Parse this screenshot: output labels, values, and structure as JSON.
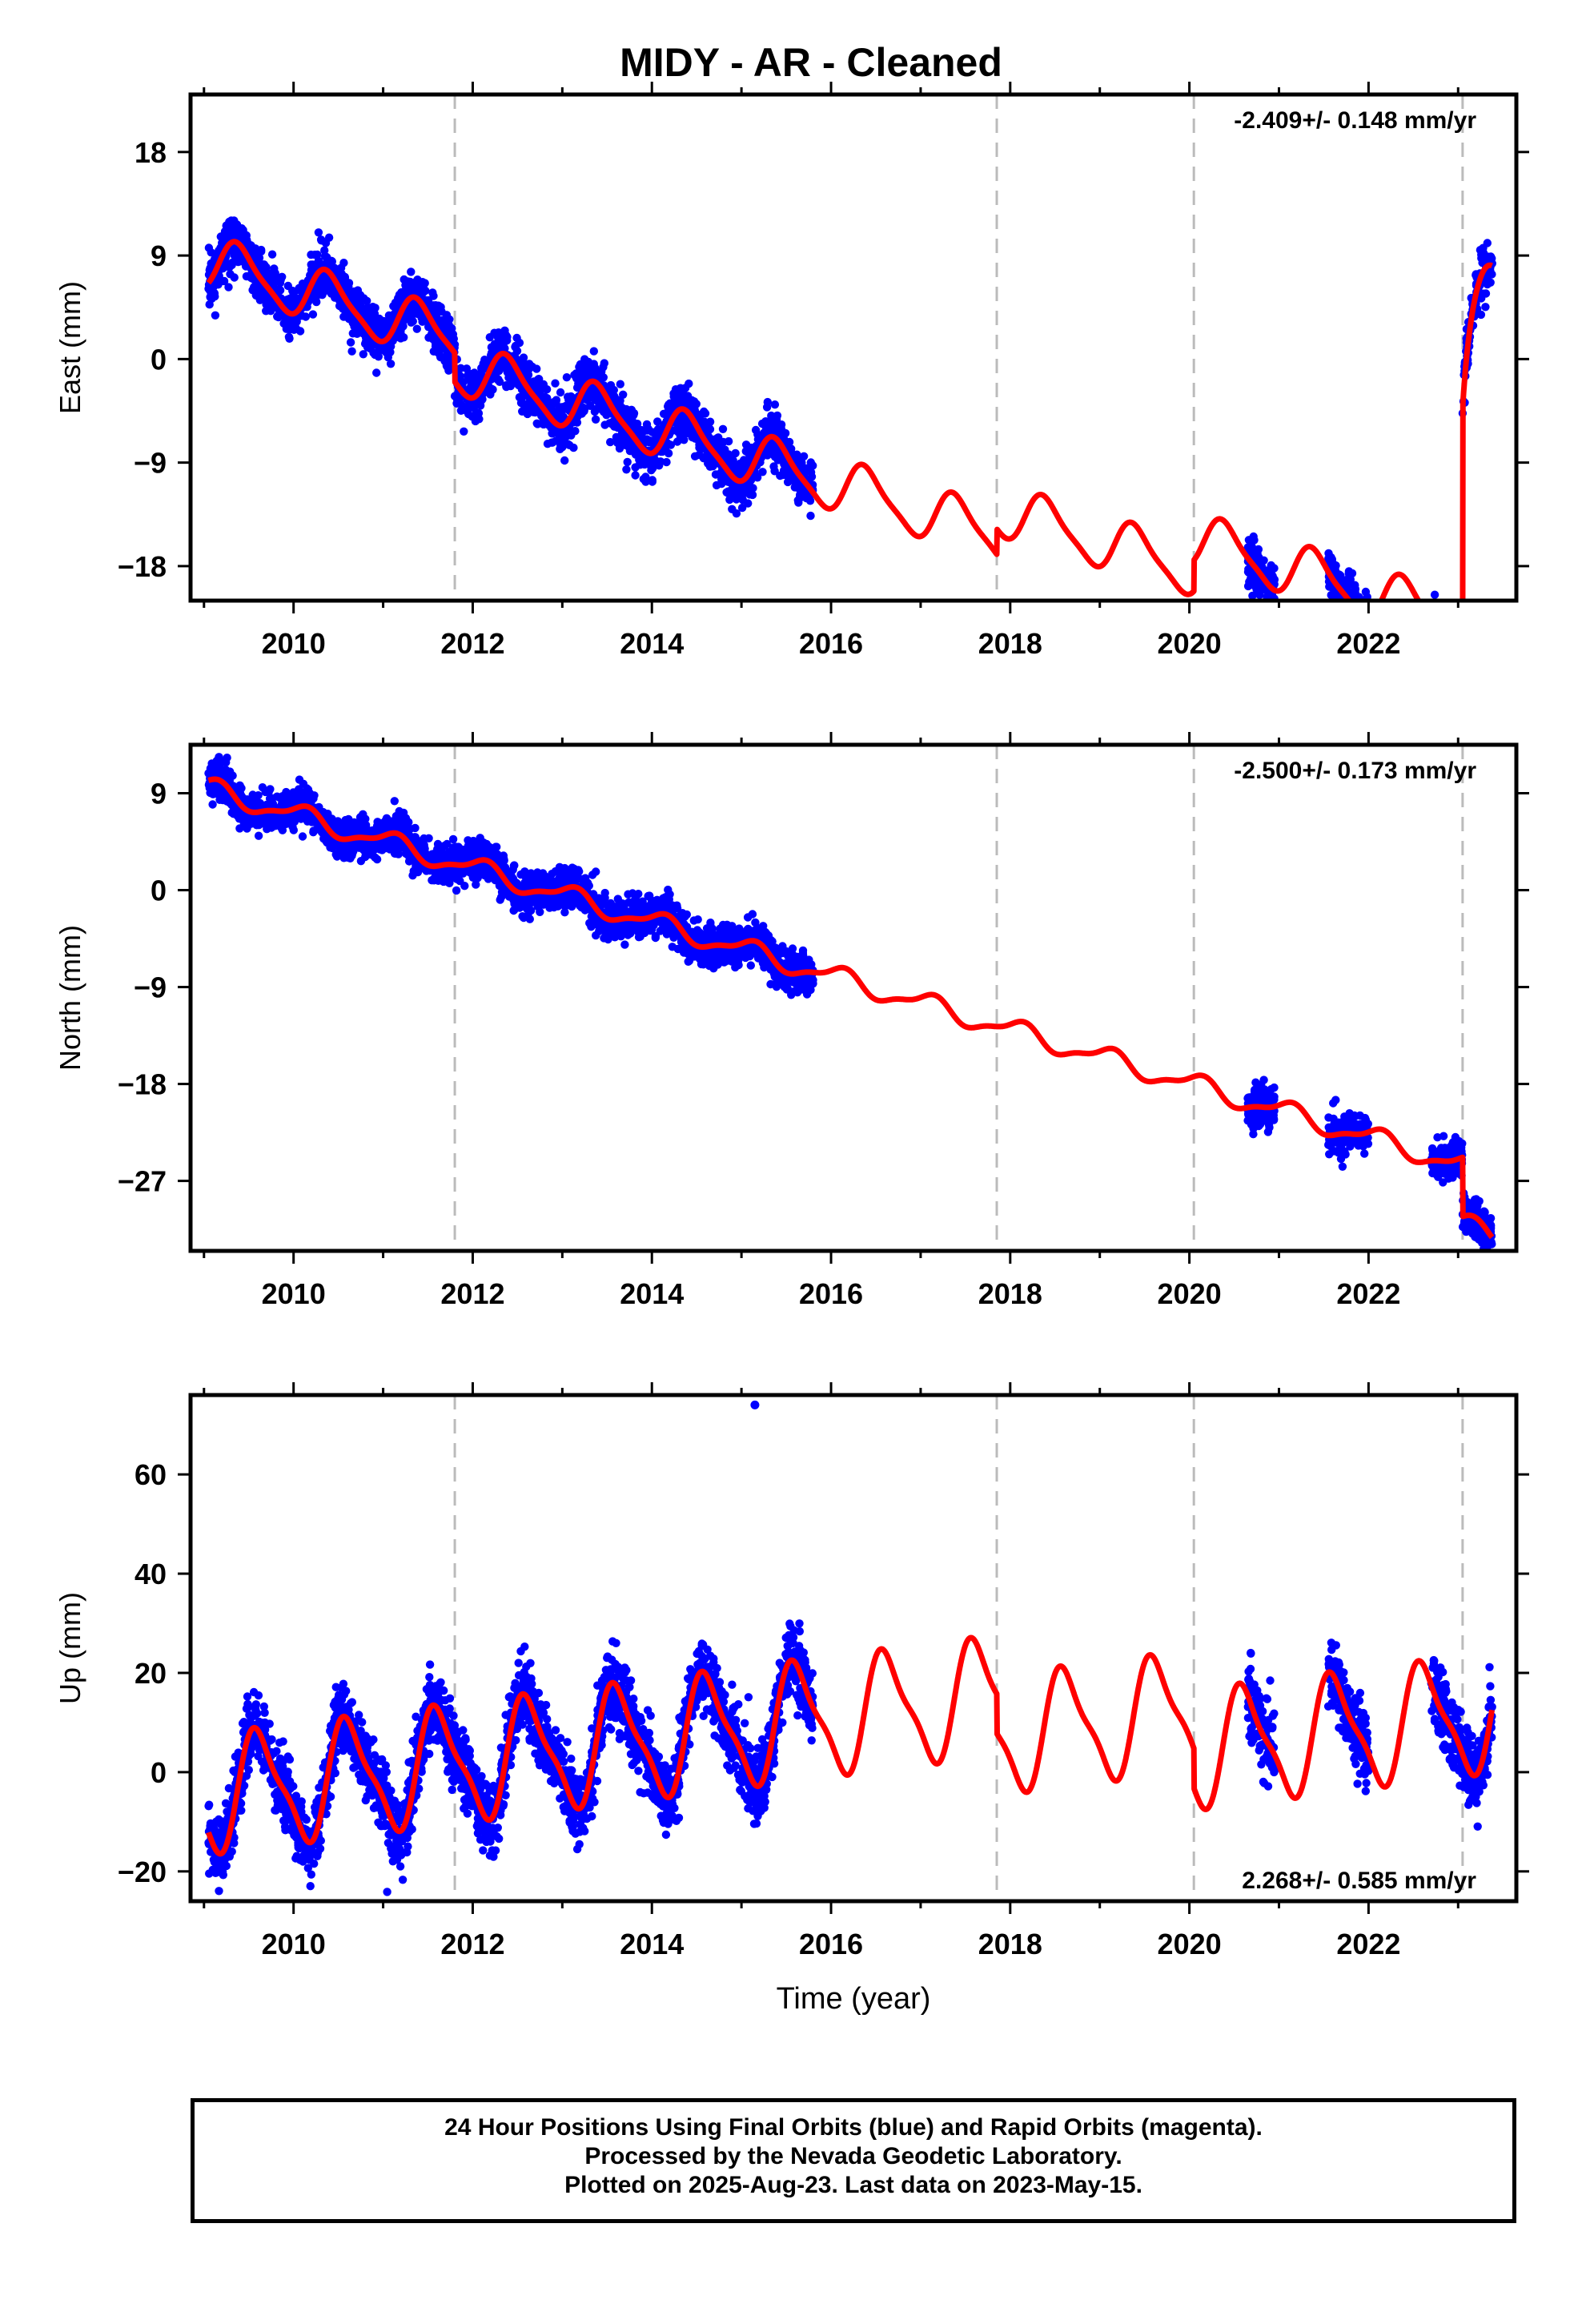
{
  "title": "MIDY  - AR - Cleaned",
  "xlabel": "Time (year)",
  "x_ticks": [
    2010,
    2012,
    2014,
    2016,
    2018,
    2020,
    2022
  ],
  "colors": {
    "data": "#0000ff",
    "model": "#ff0000",
    "event_line": "#bbbbbb",
    "frame": "#000000"
  },
  "chart_data": [
    {
      "type": "scatter",
      "panel": "east",
      "ylabel": "East (mm)",
      "rate_label": "-2.409+/- 0.148 mm/yr",
      "y_ticks": [
        18,
        9,
        0,
        -9,
        -18
      ],
      "y_tick_labels": [
        "18",
        "9",
        "0",
        "−9",
        "−18"
      ],
      "xlim": [
        2008.85,
        2023.65
      ],
      "ylim": [
        -21,
        23
      ],
      "grid": false,
      "event_lines": [
        2011.8,
        2017.85,
        2020.05,
        2023.05
      ],
      "series": [
        {
          "role": "observed positions",
          "style": "points",
          "data_segments": [
            [
              2009.05,
              2015.8
            ],
            [
              2020.65,
              2020.95
            ],
            [
              2021.55,
              2022.0
            ],
            [
              2022.7,
              2023.38
            ]
          ],
          "model": {
            "t0": 2009.1,
            "rate": -2.409,
            "intercept": 8.3,
            "annual": 2.2,
            "annual_phase": 2009.4,
            "semiannual": 0.5,
            "semi_phase": 2009.3,
            "offsets": [
              {
                "t": 2011.8,
                "dy": -2.5
              },
              {
                "t": 2017.85,
                "dy": 2.2
              },
              {
                "t": 2020.05,
                "dy": 2.7
              },
              {
                "t": 2023.05,
                "dy": 29.5
              }
            ]
          },
          "post_event_transient": {
            "t": 2023.05,
            "amplitude": 9.0,
            "decay_years": 0.08
          },
          "noise_mm": 1.1
        },
        {
          "role": "model fit",
          "style": "line",
          "gap_interpolated": true
        }
      ]
    },
    {
      "type": "scatter",
      "panel": "north",
      "ylabel": "North (mm)",
      "rate_label": "-2.500+/- 0.173 mm/yr",
      "y_ticks": [
        9,
        0,
        -9,
        -18,
        -27
      ],
      "y_tick_labels": [
        "9",
        "0",
        "−9",
        "−18",
        "−27"
      ],
      "xlim": [
        2008.85,
        2023.65
      ],
      "ylim": [
        -33.5,
        13.5
      ],
      "grid": false,
      "event_lines": [
        2011.8,
        2017.85,
        2020.05,
        2023.05
      ],
      "series": [
        {
          "role": "observed positions",
          "style": "points",
          "data_segments": [
            [
              2009.05,
              2015.8
            ],
            [
              2020.65,
              2020.95
            ],
            [
              2021.55,
              2022.0
            ],
            [
              2022.7,
              2023.38
            ]
          ],
          "model": {
            "t0": 2009.1,
            "rate": -2.5,
            "intercept": 9.3,
            "annual": 0.9,
            "annual_phase": 2009.1,
            "semiannual": 0.3,
            "semi_phase": 2009.2,
            "offsets": [
              {
                "t": 2023.05,
                "dy": -5.5
              }
            ]
          },
          "noise_mm": 0.9
        },
        {
          "role": "model fit",
          "style": "line",
          "gap_interpolated": true
        }
      ]
    },
    {
      "type": "scatter",
      "panel": "up",
      "ylabel": "Up (mm)",
      "rate_label": "2.268+/- 0.585 mm/yr",
      "y_ticks": [
        60,
        40,
        20,
        0,
        -20
      ],
      "y_tick_labels": [
        "60",
        "40",
        "20",
        "0",
        "−20"
      ],
      "xlim": [
        2008.85,
        2023.65
      ],
      "ylim": [
        -26,
        76
      ],
      "grid": false,
      "event_lines": [
        2011.8,
        2017.85,
        2020.05,
        2023.05
      ],
      "series": [
        {
          "role": "observed positions",
          "style": "points",
          "data_segments": [
            [
              2009.05,
              2015.8
            ],
            [
              2020.65,
              2020.95
            ],
            [
              2021.55,
              2022.0
            ],
            [
              2022.7,
              2023.38
            ]
          ],
          "model": {
            "t0": 2009.1,
            "rate": 2.268,
            "intercept": -4.5,
            "annual": 11.0,
            "annual_phase": 2009.62,
            "semiannual": 3.0,
            "semi_phase": 2009.5,
            "offsets": [
              {
                "t": 2017.85,
                "dy": -8.0
              },
              {
                "t": 2020.05,
                "dy": -8.0
              }
            ]
          },
          "noise_mm": 3.5,
          "outliers": [
            {
              "x": 2015.15,
              "y": 74
            }
          ]
        },
        {
          "role": "model fit",
          "style": "line",
          "gap_interpolated": true
        }
      ]
    }
  ],
  "caption": [
    "24 Hour Positions Using Final Orbits (blue) and Rapid Orbits (magenta).",
    "Processed by the Nevada Geodetic Laboratory.",
    "Plotted on 2025-Aug-23. Last data on 2023-May-15."
  ]
}
